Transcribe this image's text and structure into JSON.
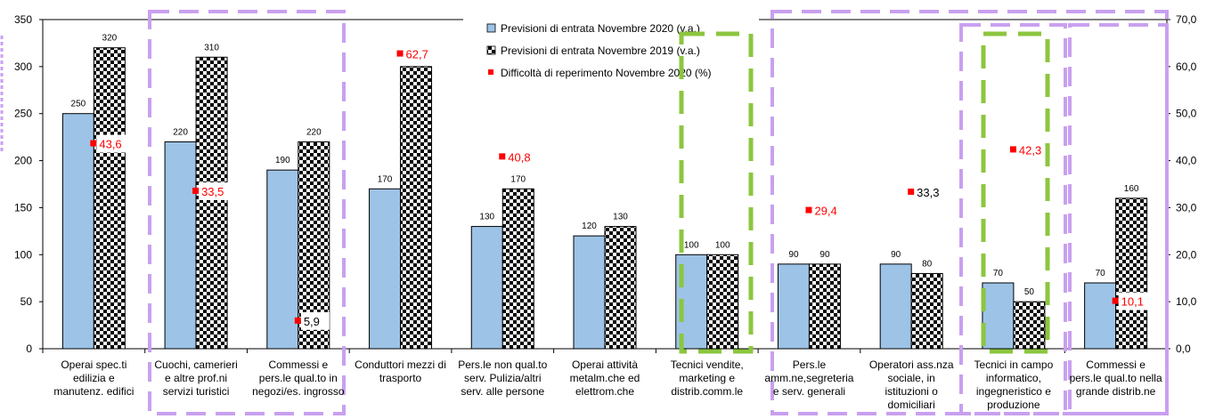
{
  "chart_data": {
    "type": "bar",
    "categories": [
      "Operai spec.ti edilizia e manutenz. edifici",
      "Cuochi, camerieri e altre prof.ni servizi turistici",
      "Commessi e pers.le qual.to in negozi/es. ingrosso",
      "Conduttori mezzi di trasporto",
      "Pers.le non qual.to serv. Pulizia/altri serv. alle persone",
      "Operai attività metalm.che ed elettrom.che",
      "Tecnici vendite, marketing e distrib.comm.le",
      "Pers.le amm.ne,segreteria e serv. generali",
      "Operatori ass.nza sociale, in istituzioni o domiciliari",
      "Tecnici in campo informatico, ingegneristico e produzione",
      "Commessi e pers.le qual.to nella grande distrib.ne"
    ],
    "category_lines": [
      [
        "Operai spec.ti",
        "edilizia e",
        "manutenz. edifici"
      ],
      [
        "Cuochi, camerieri",
        "e altre prof.ni",
        "servizi turistici"
      ],
      [
        "Commessi e",
        "pers.le qual.to in",
        "negozi/es. ingrosso"
      ],
      [
        "Conduttori mezzi di",
        "trasporto"
      ],
      [
        "Pers.le non qual.to",
        "serv. Pulizia/altri",
        "serv. alle persone"
      ],
      [
        "Operai attività",
        "metalm.che ed",
        "elettrom.che"
      ],
      [
        "Tecnici vendite,",
        "marketing e",
        "distrib.comm.le"
      ],
      [
        "Pers.le",
        "amm.ne,segreteria",
        "e serv. generali"
      ],
      [
        "Operatori ass.nza",
        "sociale, in",
        "istituzioni o",
        "domiciliari"
      ],
      [
        "Tecnici in campo",
        "informatico,",
        "ingegneristico e",
        "produzione"
      ],
      [
        "Commessi e",
        "pers.le qual.to nella",
        "grande distrib.ne"
      ]
    ],
    "series": [
      {
        "name": "Previsioni di entrata Novembre 2020 (v.a.)",
        "axis": "left",
        "color": "#9DC3E6",
        "values": [
          250,
          220,
          190,
          170,
          130,
          120,
          100,
          90,
          90,
          70,
          70
        ],
        "value_labels": [
          "250",
          "220",
          "190",
          "170",
          "130",
          "120",
          "100",
          "90",
          "90",
          "70",
          "70"
        ]
      },
      {
        "name": "Previsioni di entrata Novembre 2019 (v.a.)",
        "axis": "left",
        "pattern": "checkerboard",
        "values": [
          320,
          310,
          220,
          300,
          170,
          130,
          100,
          90,
          80,
          50,
          160
        ],
        "value_labels": [
          "320",
          "310",
          "220",
          "300",
          "170",
          "130",
          "100",
          "90",
          "80",
          "50",
          "160"
        ]
      },
      {
        "name": "Difficoltà di reperimento Novembre 2020 (%)",
        "axis": "right",
        "color": "#FF0000",
        "marker": "square",
        "values": [
          43.6,
          33.5,
          5.9,
          62.7,
          40.8,
          null,
          null,
          29.4,
          33.3,
          42.3,
          10.1
        ],
        "value_labels": [
          "43,6",
          "33,5",
          "5,9",
          "62,7",
          "40,8",
          "",
          "",
          "29,4",
          "33,3",
          "42,3",
          "10,1"
        ],
        "label_colors": [
          "#FF0000",
          "#FF0000",
          "#000000",
          "#FF0000",
          "#FF0000",
          "",
          "",
          "#FF0000",
          "#000000",
          "#FF0000",
          "#FF0000"
        ]
      }
    ],
    "y_left": {
      "ylim": [
        0,
        350
      ],
      "ticks": [
        "0",
        "50",
        "100",
        "150",
        "200",
        "250",
        "300",
        "350"
      ]
    },
    "y_right": {
      "ylim": [
        0,
        70
      ],
      "ticks": [
        "0,0",
        "10,0",
        "20,0",
        "30,0",
        "40,0",
        "50,0",
        "60,0",
        "70,0"
      ]
    },
    "legend_position": "top-center",
    "grid": false
  },
  "colors": {
    "highlight_purple": "#C9A0F0",
    "highlight_green": "#8CC63F"
  }
}
